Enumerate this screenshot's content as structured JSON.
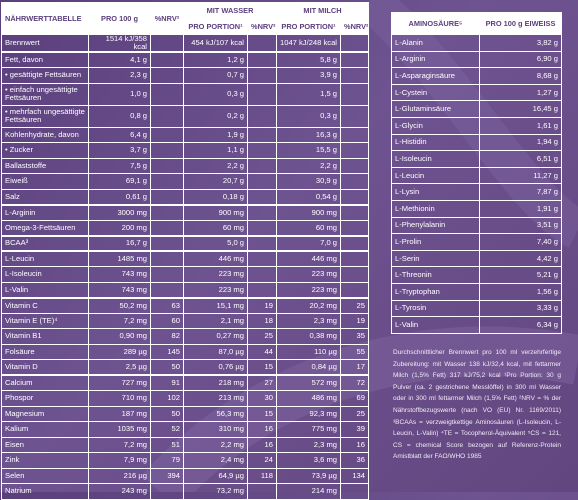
{
  "nutrition_table": {
    "headers": [
      "NÄHRWERTTABELLE",
      "PRO 100 g",
      "%NRV²",
      "MIT WASSER",
      "MIT MILCH"
    ],
    "subheaders": [
      "PRO PORTION¹",
      "%NRV²",
      "PRO PORTION¹",
      "%NRV²"
    ],
    "rows": [
      [
        "Brennwert",
        "1514 kJ/358 kcal",
        null,
        "454 kJ/107 kcal",
        null,
        "1047 kJ/248 kcal",
        null
      ],
      [
        "Fett, davon",
        "4,1 g",
        null,
        "1,2 g",
        null,
        "5,8 g",
        null
      ],
      [
        "• gesättigte Fettsäuren",
        "2,3 g",
        null,
        "0,7 g",
        null,
        "3,9 g",
        null
      ],
      [
        "• einfach ungesättigte Fettsäuren",
        "1,0 g",
        null,
        "0,3 g",
        null,
        "1,5 g",
        null
      ],
      [
        "• mehrfach ungesättigte Fettsäuren",
        "0,8 g",
        null,
        "0,2 g",
        null,
        "0,3 g",
        null
      ],
      [
        "Kohlenhydrate, davon",
        "6,4 g",
        null,
        "1,9 g",
        null,
        "16,3 g",
        null
      ],
      [
        "• Zucker",
        "3,7 g",
        null,
        "1,1 g",
        null,
        "15,5 g",
        null
      ],
      [
        "Ballaststoffe",
        "7,5 g",
        null,
        "2,2 g",
        null,
        "2,2 g",
        null
      ],
      [
        "Eiweiß",
        "69,1 g",
        null,
        "20,7 g",
        null,
        "30,9 g",
        null
      ],
      [
        "Salz",
        "0,61 g",
        null,
        "0,18 g",
        null,
        "0,54 g",
        null
      ],
      [
        "L-Arginin",
        "3000 mg",
        null,
        "900 mg",
        null,
        "900 mg",
        null
      ],
      [
        "Omega-3-Fettsäuren",
        "200 mg",
        null,
        "60 mg",
        null,
        "60 mg",
        null
      ],
      [
        "BCAA³",
        "16,7 g",
        null,
        "5,0 g",
        null,
        "7,0 g",
        null
      ],
      [
        "L-Leucin",
        "1485 mg",
        null,
        "446 mg",
        null,
        "446 mg",
        null
      ],
      [
        "L-Isoleucin",
        "743 mg",
        null,
        "223 mg",
        null,
        "223 mg",
        null
      ],
      [
        "L-Valin",
        "743 mg",
        null,
        "223 mg",
        null,
        "223 mg",
        null
      ],
      [
        "Vitamin C",
        "50,2 mg",
        "63",
        "15,1 mg",
        "19",
        "20,2 mg",
        "25"
      ],
      [
        "Vitamin E (TE)⁴",
        "7,2 mg",
        "60",
        "2,1 mg",
        "18",
        "2,3 mg",
        "19"
      ],
      [
        "Vitamin B1",
        "0,90 mg",
        "82",
        "0,27 mg",
        "25",
        "0,38 mg",
        "35"
      ],
      [
        "Folsäure",
        "289 µg",
        "145",
        "87,0 µg",
        "44",
        "110 µg",
        "55"
      ],
      [
        "Vitamin D",
        "2,5 µg",
        "50",
        "0,76 µg",
        "15",
        "0,84 µg",
        "17"
      ],
      [
        "Calcium",
        "727 mg",
        "91",
        "218 mg",
        "27",
        "572 mg",
        "72"
      ],
      [
        "Phospor",
        "710 mg",
        "102",
        "213 mg",
        "30",
        "486 mg",
        "69"
      ],
      [
        "Magnesium",
        "187 mg",
        "50",
        "56,3 mg",
        "15",
        "92,3 mg",
        "25"
      ],
      [
        "Kalium",
        "1035 mg",
        "52",
        "310 mg",
        "16",
        "775 mg",
        "39"
      ],
      [
        "Eisen",
        "7,2 mg",
        "51",
        "2,2 mg",
        "16",
        "2,3 mg",
        "16"
      ],
      [
        "Zink",
        "7,9 mg",
        "79",
        "2,4 mg",
        "24",
        "3,6 mg",
        "36"
      ],
      [
        "Selen",
        "216 µg",
        "394",
        "64,9 µg",
        "118",
        "73,9 µg",
        "134"
      ],
      [
        "Natrium",
        "243 mg",
        null,
        "73,2 mg",
        null,
        "214 mg",
        null
      ]
    ]
  },
  "amino_table": {
    "headers": [
      "AMINOSÄURE⁵",
      "PRO 100 g EIWEISS"
    ],
    "rows": [
      [
        "L-Alanin",
        "3,82 g"
      ],
      [
        "L-Arginin",
        "6,90 g"
      ],
      [
        "L-Asparaginsäure",
        "8,68 g"
      ],
      [
        "L-Cystein",
        "1,27 g"
      ],
      [
        "L-Glutaminsäure",
        "16,45 g"
      ],
      [
        "L-Glycin",
        "1,61 g"
      ],
      [
        "L-Histidin",
        "1,94 g"
      ],
      [
        "L-Isoleucin",
        "6,51 g"
      ],
      [
        "L-Leucin",
        "11,27 g"
      ],
      [
        "L-Lysin",
        "7,87 g"
      ],
      [
        "L-Methionin",
        "1,91 g"
      ],
      [
        "L-Phenylalanin",
        "3,51 g"
      ],
      [
        "L-Prolin",
        "7,40 g"
      ],
      [
        "L-Serin",
        "4,42 g"
      ],
      [
        "L-Threonin",
        "5,21 g"
      ],
      [
        "L-Tryptophan",
        "1,56 g"
      ],
      [
        "L-Tyrosin",
        "3,33 g"
      ],
      [
        "L-Valin",
        "6,34 g"
      ]
    ]
  },
  "footnote": "Durchschnittlicher Brennwert pro 100 ml verzehrfertige Zubereitung: mit Wasser 138 kJ/32,4 kcal, mit fettarmer Milch (1,5% Fett) 317 kJ/75,2 kcal ¹Pro Portion: 30 g Pulver (ca. 2 gestrichene Messlöffel) in 300 ml Wasser oder in 300 ml fettarmer Milch (1,5% Fett) ²NRV = % der Nährstoffbezugswerte (nach VO (EU) Nr. 1169/2011) ³BCAAs = verzweigtkettige Aminosäuren (L-Isoleucin, L-Leucin, L-Valin) ⁴TE = Tocopherol-Äquivalent ⁵CS = 121, CS = chemical Score bezogen auf Referenz-Protein Amistblatt der FAO/WHO 1985"
}
